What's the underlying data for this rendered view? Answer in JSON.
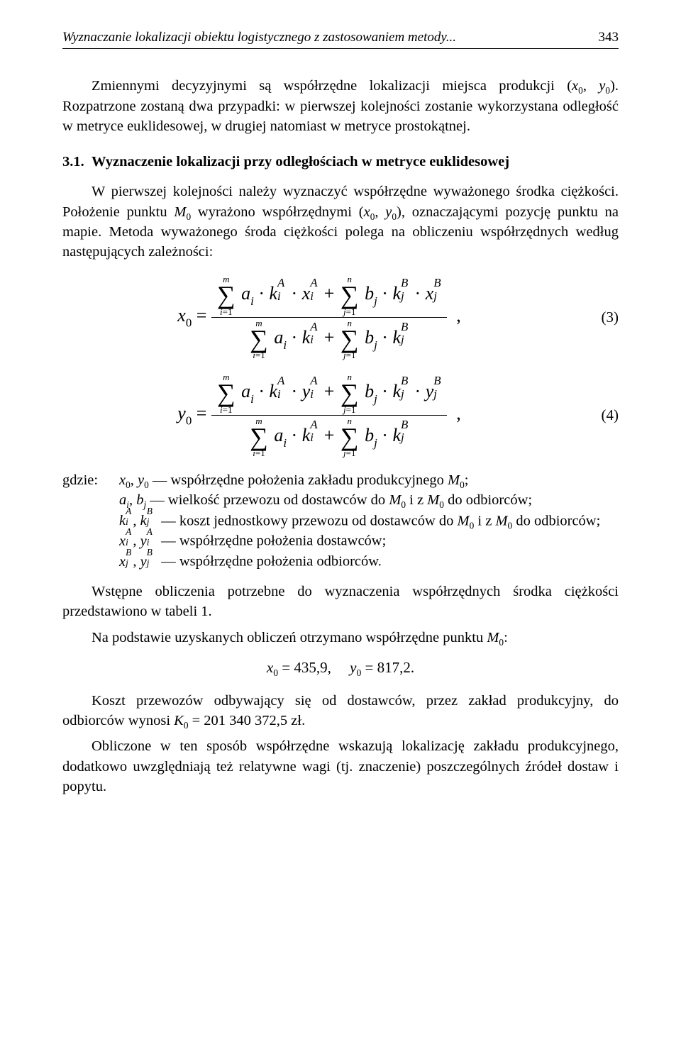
{
  "runningHead": {
    "title": "Wyznaczanie lokalizacji obiektu logistycznego z zastosowaniem metody...",
    "pageNumber": "343"
  },
  "para1": "Zmiennymi decyzyjnymi są współrzędne lokalizacji miejsca produkcji (x₀, y₀). Rozpatrzone zostaną dwa przypadki: w pierwszej kolejności zostanie wykorzystana odległość w metryce euklidesowej, w drugiej natomiast w metryce prostokątnej.",
  "section31": {
    "number": "3.1.",
    "title": "Wyznaczenie lokalizacji przy odległościach w metryce euklidesowej"
  },
  "para2": "W pierwszej kolejności należy wyznaczyć współrzędne wyważonego środka ciężkości. Położenie punktu M₀ wyrażono współrzędnymi (x₀, y₀), oznaczającymi pozycję punktu na mapie. Metoda wyważonego środa ciężkości polega na obliczeniu współrzędnych według następujących zależności:",
  "eq3": {
    "lhs": "x",
    "lhsSub": "0",
    "num": {
      "sum1": {
        "top": "m",
        "bot": "i=1",
        "term": "aᵢ · kᵢᴬ · xᵢᴬ"
      },
      "sum2": {
        "top": "n",
        "bot": "j=1",
        "term": "bⱼ · kⱼᴮ · xⱼᴮ"
      }
    },
    "den": {
      "sum1": {
        "top": "m",
        "bot": "i=1",
        "term": "aᵢ · kᵢᴬ"
      },
      "sum2": {
        "top": "n",
        "bot": "j=1",
        "term": "bⱼ · kⱼᴮ"
      }
    },
    "label": "(3)"
  },
  "eq4": {
    "lhs": "y",
    "lhsSub": "0",
    "label": "(4)"
  },
  "defs": {
    "lead": "gdzie:",
    "d1": "x₀, y₀ — współrzędne położenia zakładu produkcyjnego M₀;",
    "d2": "aᵢ, bⱼ — wielkość przewozu od dostawców do M₀ i z M₀ do odbiorców;",
    "d3a": "kᵢᴬ, kⱼᴮ",
    "d3b": " — koszt jednostkowy przewozu od dostawców do M₀ i z M₀ do odbiorców;",
    "d4a": "xᵢᴬ, yᵢᴬ",
    "d4b": " — współrzędne położenia dostawców;",
    "d5a": "xⱼᴮ, yⱼᴮ",
    "d5b": " — współrzędne położenia odbiorców."
  },
  "para3": "Wstępne obliczenia potrzebne do wyznaczenia współrzędnych środka ciężkości przedstawiono w tabeli 1.",
  "para4": "Na podstawie uzyskanych obliczeń otrzymano współrzędne punktu M₀:",
  "resultEq": "x₀ = 435,9,    y₀ = 817,2.",
  "para5": "Koszt przewozów odbywający się od dostawców, przez zakład produkcyjny, do odbiorców wynosi K₀ = 201 340 372,5 zł.",
  "para6": "Obliczone w ten sposób współrzędne wskazują lokalizację zakładu produkcyjnego, dodatkowo uwzględniają też relatywne wagi (tj. znaczenie) poszczególnych źródeł dostaw i popytu."
}
